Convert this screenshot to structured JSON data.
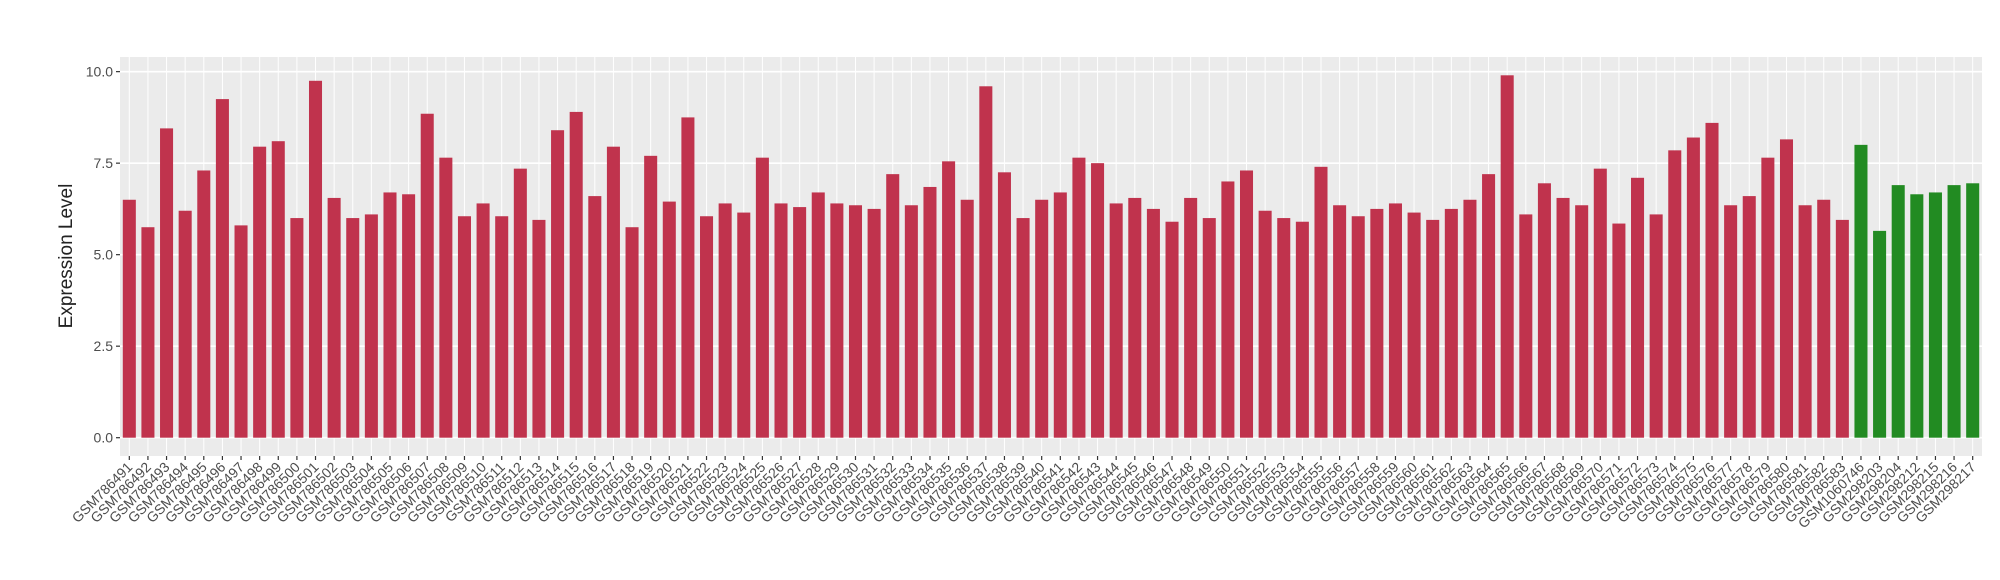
{
  "chart_data": {
    "type": "bar",
    "y_label": "Expression Level",
    "categories": [
      "GSM786491",
      "GSM786492",
      "GSM786493",
      "GSM786494",
      "GSM786495",
      "GSM786496",
      "GSM786497",
      "GSM786498",
      "GSM786499",
      "GSM786500",
      "GSM786501",
      "GSM786502",
      "GSM786503",
      "GSM786504",
      "GSM786505",
      "GSM786506",
      "GSM786507",
      "GSM786508",
      "GSM786509",
      "GSM786510",
      "GSM786511",
      "GSM786512",
      "GSM786513",
      "GSM786514",
      "GSM786515",
      "GSM786516",
      "GSM786517",
      "GSM786518",
      "GSM786519",
      "GSM786520",
      "GSM786521",
      "GSM786522",
      "GSM786523",
      "GSM786524",
      "GSM786525",
      "GSM786526",
      "GSM786527",
      "GSM786528",
      "GSM786529",
      "GSM786530",
      "GSM786531",
      "GSM786532",
      "GSM786533",
      "GSM786534",
      "GSM786535",
      "GSM786536",
      "GSM786537",
      "GSM786538",
      "GSM786539",
      "GSM786540",
      "GSM786541",
      "GSM786542",
      "GSM786543",
      "GSM786544",
      "GSM786545",
      "GSM786546",
      "GSM786547",
      "GSM786548",
      "GSM786549",
      "GSM786550",
      "GSM786551",
      "GSM786552",
      "GSM786553",
      "GSM786554",
      "GSM786555",
      "GSM786556",
      "GSM786557",
      "GSM786558",
      "GSM786559",
      "GSM786560",
      "GSM786561",
      "GSM786562",
      "GSM786563",
      "GSM786564",
      "GSM786565",
      "GSM786566",
      "GSM786567",
      "GSM786568",
      "GSM786569",
      "GSM786570",
      "GSM786571",
      "GSM786572",
      "GSM786573",
      "GSM786574",
      "GSM786575",
      "GSM786576",
      "GSM786577",
      "GSM786578",
      "GSM786579",
      "GSM786580",
      "GSM786581",
      "GSM786582",
      "GSM786583",
      "GSM1060746",
      "GSM298203",
      "GSM298204",
      "GSM298212",
      "GSM298215",
      "GSM298216",
      "GSM298217"
    ],
    "values": [
      6.5,
      5.75,
      8.45,
      6.2,
      7.3,
      9.25,
      5.8,
      7.95,
      8.1,
      6.0,
      9.75,
      6.55,
      6.0,
      6.1,
      6.7,
      6.65,
      8.85,
      7.65,
      6.05,
      6.4,
      6.05,
      7.35,
      5.95,
      8.4,
      8.9,
      6.6,
      7.95,
      5.75,
      7.7,
      6.45,
      8.75,
      6.05,
      6.4,
      6.15,
      7.65,
      6.4,
      6.3,
      6.7,
      6.4,
      6.35,
      6.25,
      7.2,
      6.35,
      6.85,
      7.55,
      6.5,
      9.6,
      7.25,
      6.0,
      6.5,
      6.7,
      7.65,
      7.5,
      6.4,
      6.55,
      6.25,
      5.9,
      6.55,
      6.0,
      7.0,
      7.3,
      6.2,
      6.0,
      5.9,
      7.4,
      6.35,
      6.05,
      6.25,
      6.4,
      6.15,
      5.95,
      6.25,
      6.5,
      7.2,
      9.9,
      6.1,
      6.95,
      6.55,
      6.35,
      7.35,
      5.85,
      7.1,
      6.1,
      7.85,
      8.2,
      8.6,
      6.35,
      6.6,
      7.65,
      8.15,
      6.35,
      6.5,
      5.95,
      8.0,
      5.65,
      6.9,
      6.65,
      6.7,
      6.9,
      6.95
    ],
    "colors": [
      "#c0334d",
      "#c0334d",
      "#c0334d",
      "#c0334d",
      "#c0334d",
      "#c0334d",
      "#c0334d",
      "#c0334d",
      "#c0334d",
      "#c0334d",
      "#c0334d",
      "#c0334d",
      "#c0334d",
      "#c0334d",
      "#c0334d",
      "#c0334d",
      "#c0334d",
      "#c0334d",
      "#c0334d",
      "#c0334d",
      "#c0334d",
      "#c0334d",
      "#c0334d",
      "#c0334d",
      "#c0334d",
      "#c0334d",
      "#c0334d",
      "#c0334d",
      "#c0334d",
      "#c0334d",
      "#c0334d",
      "#c0334d",
      "#c0334d",
      "#c0334d",
      "#c0334d",
      "#c0334d",
      "#c0334d",
      "#c0334d",
      "#c0334d",
      "#c0334d",
      "#c0334d",
      "#c0334d",
      "#c0334d",
      "#c0334d",
      "#c0334d",
      "#c0334d",
      "#c0334d",
      "#c0334d",
      "#c0334d",
      "#c0334d",
      "#c0334d",
      "#c0334d",
      "#c0334d",
      "#c0334d",
      "#c0334d",
      "#c0334d",
      "#c0334d",
      "#c0334d",
      "#c0334d",
      "#c0334d",
      "#c0334d",
      "#c0334d",
      "#c0334d",
      "#c0334d",
      "#c0334d",
      "#c0334d",
      "#c0334d",
      "#c0334d",
      "#c0334d",
      "#c0334d",
      "#c0334d",
      "#c0334d",
      "#c0334d",
      "#c0334d",
      "#c0334d",
      "#c0334d",
      "#c0334d",
      "#c0334d",
      "#c0334d",
      "#c0334d",
      "#c0334d",
      "#c0334d",
      "#c0334d",
      "#c0334d",
      "#c0334d",
      "#c0334d",
      "#c0334d",
      "#c0334d",
      "#c0334d",
      "#c0334d",
      "#c0334d",
      "#c0334d",
      "#c0334d",
      "#228b22",
      "#228b22",
      "#228b22",
      "#228b22",
      "#228b22",
      "#228b22",
      "#228b22"
    ],
    "ylim": [
      -0.5,
      10.4
    ],
    "yticks": [
      {
        "value": 0,
        "label": "0.0"
      },
      2.5,
      {
        "value": 5,
        "label": "5.0"
      },
      7.5,
      {
        "value": 10,
        "label": "10.0"
      }
    ],
    "grid": true
  }
}
